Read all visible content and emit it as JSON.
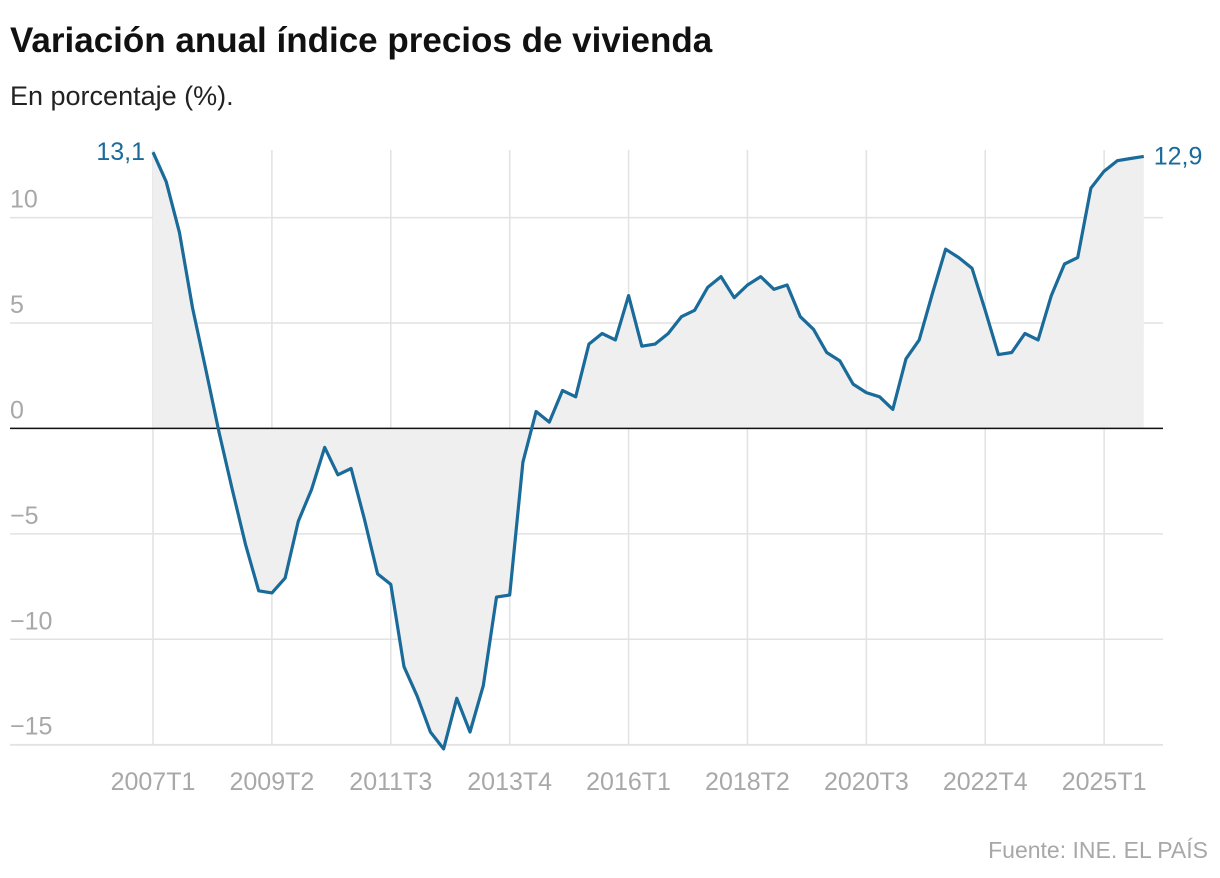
{
  "chart_data": {
    "type": "line",
    "title": "Variación anual índice precios de vivienda",
    "subtitle": "En porcentaje (%).",
    "source": "Fuente: INE. EL PAÍS",
    "categories": [
      "2007T1",
      null,
      null,
      null,
      null,
      null,
      null,
      null,
      null,
      "2009T2",
      null,
      null,
      null,
      null,
      null,
      null,
      null,
      null,
      "2011T3",
      null,
      null,
      null,
      null,
      null,
      null,
      null,
      null,
      "2013T4",
      null,
      null,
      null,
      null,
      null,
      null,
      null,
      null,
      "2016T1",
      null,
      null,
      null,
      null,
      null,
      null,
      null,
      null,
      "2018T2",
      null,
      null,
      null,
      null,
      null,
      null,
      null,
      null,
      "2020T3",
      null,
      null,
      null,
      null,
      null,
      null,
      null,
      null,
      "2022T4",
      null,
      null,
      null,
      null,
      null,
      null,
      null,
      null,
      "2025T1",
      null,
      null,
      null
    ],
    "series": [
      {
        "name": "Variación anual",
        "color": "#1a6b9a",
        "values": [
          13.1,
          11.7,
          9.3,
          5.7,
          2.8,
          -0.2,
          -2.9,
          -5.5,
          -7.7,
          -7.8,
          -7.1,
          -4.4,
          -2.9,
          -0.9,
          -2.2,
          -1.9,
          -4.3,
          -6.9,
          -7.4,
          -11.3,
          -12.7,
          -14.4,
          -15.2,
          -12.8,
          -14.4,
          -12.2,
          -8.0,
          -7.9,
          -1.6,
          0.8,
          0.3,
          1.8,
          1.5,
          4.0,
          4.5,
          4.2,
          6.3,
          3.9,
          4.0,
          4.5,
          5.3,
          5.6,
          6.7,
          7.2,
          6.2,
          6.8,
          7.2,
          6.6,
          6.8,
          5.3,
          4.7,
          3.6,
          3.2,
          2.1,
          1.7,
          1.5,
          0.9,
          3.3,
          4.2,
          6.4,
          8.5,
          8.1,
          7.6,
          5.6,
          3.5,
          3.6,
          4.5,
          4.2,
          6.3,
          7.8,
          8.1,
          11.4,
          12.2,
          12.7,
          12.8,
          12.9
        ],
        "value_labels": [
          "13,1",
          null,
          null,
          null,
          null,
          null,
          null,
          null,
          null,
          null,
          null,
          null,
          null,
          null,
          null,
          null,
          null,
          null,
          null,
          null,
          null,
          null,
          null,
          null,
          null,
          null,
          null,
          null,
          null,
          null,
          null,
          null,
          null,
          null,
          null,
          null,
          null,
          null,
          null,
          null,
          null,
          null,
          null,
          null,
          null,
          null,
          null,
          null,
          null,
          null,
          null,
          null,
          null,
          null,
          null,
          null,
          null,
          null,
          null,
          null,
          null,
          null,
          null,
          null,
          null,
          null,
          null,
          null,
          null,
          null,
          null,
          null,
          null,
          null,
          null,
          "12,9"
        ]
      }
    ],
    "ylim": [
      -15.3,
      13.3
    ],
    "yticks": [
      {
        "value": -15,
        "label": "−15"
      },
      {
        "value": -10,
        "label": "−10"
      },
      {
        "value": -5,
        "label": "−5"
      },
      0,
      5,
      10
    ],
    "area_color": "#efefef",
    "grid": true
  }
}
